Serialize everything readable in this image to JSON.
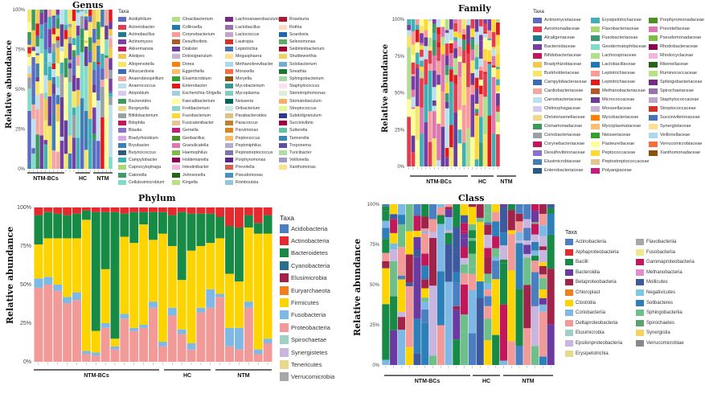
{
  "chart_data": [
    {
      "id": "genus",
      "type": "bar",
      "title": "Genus",
      "ylabel": "Relative abundance",
      "y_ticks": [
        "0%",
        "25%",
        "50%",
        "75%",
        "100%"
      ],
      "groups": [
        {
          "label": "NTM-BCs"
        },
        {
          "label": "HC"
        },
        {
          "label": "NTM"
        }
      ],
      "legend_title": "Taxa",
      "legend": [
        {
          "name": "Acidiphilium",
          "color": "#5b6cc4"
        },
        {
          "name": "Acinetobacter",
          "color": "#e43b4f"
        },
        {
          "name": "Actinobacillus",
          "color": "#1f7a8c"
        },
        {
          "name": "Actinomyces",
          "color": "#7a3fa6"
        },
        {
          "name": "Akkermansia",
          "color": "#c2185b"
        },
        {
          "name": "Alistipes",
          "color": "#f2c94c"
        },
        {
          "name": "Alloprevotella",
          "color": "#f5e663"
        },
        {
          "name": "Alloscardovia",
          "color": "#3d6bb3"
        },
        {
          "name": "Anaerobiospirillum",
          "color": "#f4a7a0"
        },
        {
          "name": "Anaerococcus",
          "color": "#bde0f0"
        },
        {
          "name": "Atopobium",
          "color": "#d8c9f2"
        },
        {
          "name": "Bacteroides",
          "color": "#3a9a5b"
        },
        {
          "name": "Bergeyella",
          "color": "#efd88a"
        },
        {
          "name": "Bifidobacterium",
          "color": "#9aa0a6"
        },
        {
          "name": "Bilophila",
          "color": "#c2185b"
        },
        {
          "name": "Blautia",
          "color": "#8a6fcf"
        },
        {
          "name": "Bradyrhizobium",
          "color": "#d9a6e8"
        },
        {
          "name": "Bryobacter",
          "color": "#3f7fb5"
        },
        {
          "name": "Butyricicoccus",
          "color": "#2e5a87"
        },
        {
          "name": "Campylobacter",
          "color": "#3fb0b5"
        },
        {
          "name": "Capnocytophaga",
          "color": "#a8d86e"
        },
        {
          "name": "Catonella",
          "color": "#3d9970"
        },
        {
          "name": "Cellulosimicrobium",
          "color": "#7fdbca"
        },
        {
          "name": "Cloacibacterium",
          "color": "#b2df8a"
        },
        {
          "name": "Collinsella",
          "color": "#1f78b4"
        },
        {
          "name": "Corynebacterium",
          "color": "#fb9a99"
        },
        {
          "name": "Desulfovibrio",
          "color": "#b15928"
        },
        {
          "name": "Dialister",
          "color": "#6a3d9a"
        },
        {
          "name": "Dolosigranulum",
          "color": "#cab2d6"
        },
        {
          "name": "Dorea",
          "color": "#ff7f00"
        },
        {
          "name": "Eggerthella",
          "color": "#fdbf6f"
        },
        {
          "name": "Elusimicrobium",
          "color": "#33a02c"
        },
        {
          "name": "Enterobacter",
          "color": "#e31a1c"
        },
        {
          "name": "Escherichia-Shigella",
          "color": "#a6cee3"
        },
        {
          "name": "Faecalibacterium",
          "color": "#ffff99"
        },
        {
          "name": "Fretibacterium",
          "color": "#8dd3c7"
        },
        {
          "name": "Fusobacterium",
          "color": "#ffd92f"
        },
        {
          "name": "Fusicatenibacter",
          "color": "#e5c494"
        },
        {
          "name": "Gemella",
          "color": "#c51b7d"
        },
        {
          "name": "Geobacillus",
          "color": "#4d9221"
        },
        {
          "name": "Granulicatella",
          "color": "#de77ae"
        },
        {
          "name": "Haemophilus",
          "color": "#7fbc41"
        },
        {
          "name": "Holdemanella",
          "color": "#8e0152"
        },
        {
          "name": "Intestinibacter",
          "color": "#f1b6da"
        },
        {
          "name": "Johnsonella",
          "color": "#276419"
        },
        {
          "name": "Kingella",
          "color": "#b8e186"
        },
        {
          "name": "Lachnoanaerobaculum",
          "color": "#762a83"
        },
        {
          "name": "Lactobacillus",
          "color": "#9970ab"
        },
        {
          "name": "Lactococcus",
          "color": "#c2a5cf"
        },
        {
          "name": "Lautropia",
          "color": "#d73027"
        },
        {
          "name": "Leptotrichia",
          "color": "#4575b4"
        },
        {
          "name": "Megasphaera",
          "color": "#fee090"
        },
        {
          "name": "Methanobrevibacter",
          "color": "#abd9e9"
        },
        {
          "name": "Moraxella",
          "color": "#f46d43"
        },
        {
          "name": "Moryella",
          "color": "#8c510a"
        },
        {
          "name": "Mycobacterium",
          "color": "#35978f"
        },
        {
          "name": "Mycoplasma",
          "color": "#80cdc1"
        },
        {
          "name": "Neisseria",
          "color": "#01665e"
        },
        {
          "name": "Oribacterium",
          "color": "#c7eae5"
        },
        {
          "name": "Parabacteroides",
          "color": "#dfc27d"
        },
        {
          "name": "Paracoccus",
          "color": "#bf812d"
        },
        {
          "name": "Parvimonas",
          "color": "#e08214"
        },
        {
          "name": "Peptococcus",
          "color": "#fdb863"
        },
        {
          "name": "Peptoniphilus",
          "color": "#b2abd2"
        },
        {
          "name": "Peptostreptococcus",
          "color": "#8073ac"
        },
        {
          "name": "Porphyromonas",
          "color": "#542788"
        },
        {
          "name": "Prevotella",
          "color": "#d6604d"
        },
        {
          "name": "Pseudomonas",
          "color": "#4393c3"
        },
        {
          "name": "Romboutsia",
          "color": "#92c5de"
        },
        {
          "name": "Roseburia",
          "color": "#b2182b"
        },
        {
          "name": "Rothia",
          "color": "#fddbc7"
        },
        {
          "name": "Scardovia",
          "color": "#2166ac"
        },
        {
          "name": "Selenomonas",
          "color": "#5aae61"
        },
        {
          "name": "Sediminibacterium",
          "color": "#a50026"
        },
        {
          "name": "Shuttleworthia",
          "color": "#f9d057"
        },
        {
          "name": "Solobacterium",
          "color": "#74add1"
        },
        {
          "name": "Sneathia",
          "color": "#1b7837"
        },
        {
          "name": "Sphingobacterium",
          "color": "#a6dba0"
        },
        {
          "name": "Staphylococcus",
          "color": "#fde0ef"
        },
        {
          "name": "Stenotrophomonas",
          "color": "#d9f0d3"
        },
        {
          "name": "Stomatobaculum",
          "color": "#fdae61"
        },
        {
          "name": "Streptococcus",
          "color": "#e6f598"
        },
        {
          "name": "Subdoligranulum",
          "color": "#313695"
        },
        {
          "name": "Succinivibrio",
          "color": "#9e0142"
        },
        {
          "name": "Sutterella",
          "color": "#66c2a5"
        },
        {
          "name": "Tannerella",
          "color": "#3288bd"
        },
        {
          "name": "Treponema",
          "color": "#5e4fa2"
        },
        {
          "name": "Turicibacter",
          "color": "#abdda4"
        },
        {
          "name": "Veillonella",
          "color": "#9e9ac8"
        },
        {
          "name": "Xanthomonas",
          "color": "#fee08b"
        }
      ]
    },
    {
      "id": "family",
      "type": "bar",
      "title": "Family",
      "ylabel": "Relative abundance",
      "y_ticks": [
        "0%",
        "25%",
        "50%",
        "75%",
        "100%"
      ],
      "groups": [
        {
          "label": "NTM-BCs"
        },
        {
          "label": "HC"
        },
        {
          "label": "NTM"
        }
      ],
      "legend_title": "Taxa",
      "legend": [
        {
          "name": "Actinomycetaceae",
          "color": "#5b6cc4"
        },
        {
          "name": "Aeromonadaceae",
          "color": "#e43b4f"
        },
        {
          "name": "Alcaligenaceae",
          "color": "#1f7a8c"
        },
        {
          "name": "Bacteroidaceae",
          "color": "#7a3fa6"
        },
        {
          "name": "Bifidobacteriaceae",
          "color": "#c2185b"
        },
        {
          "name": "Bradyrhizobiaceae",
          "color": "#f2c94c"
        },
        {
          "name": "Burkholderiaceae",
          "color": "#f5e663"
        },
        {
          "name": "Campylobacteraceae",
          "color": "#3d6bb3"
        },
        {
          "name": "Cardiobacteriaceae",
          "color": "#f4a7a0"
        },
        {
          "name": "Carnobacteriaceae",
          "color": "#bde0f0"
        },
        {
          "name": "Chitinophagaceae",
          "color": "#d8c9f2"
        },
        {
          "name": "Christensenellaceae",
          "color": "#efd88a"
        },
        {
          "name": "Comamonadaceae",
          "color": "#3a9a5b"
        },
        {
          "name": "Coriobacteriaceae",
          "color": "#9aa0a6"
        },
        {
          "name": "Corynebacteriaceae",
          "color": "#c2185b"
        },
        {
          "name": "Desulfovibrionaceae",
          "color": "#8a6fcf"
        },
        {
          "name": "Elusimicrobiaceae",
          "color": "#3f7fb5"
        },
        {
          "name": "Enterobacteriaceae",
          "color": "#2e5a87"
        },
        {
          "name": "Erysipelotrichaceae",
          "color": "#3fb0b5"
        },
        {
          "name": "Flavobacteriaceae",
          "color": "#a8d86e"
        },
        {
          "name": "Fusobacteriaceae",
          "color": "#3d9970"
        },
        {
          "name": "Geodermatophilaceae",
          "color": "#7fdbca"
        },
        {
          "name": "Lachnospiraceae",
          "color": "#b2df8a"
        },
        {
          "name": "Lactobacillaceae",
          "color": "#1f78b4"
        },
        {
          "name": "Leptotrichiaceae",
          "color": "#fb9a99"
        },
        {
          "name": "Leptotrichiaceae",
          "color": "#e31a1c"
        },
        {
          "name": "Methanobacteriaceae",
          "color": "#b15928"
        },
        {
          "name": "Micrococcaceae",
          "color": "#6a3d9a"
        },
        {
          "name": "Moraxellaceae",
          "color": "#cab2d6"
        },
        {
          "name": "Mycobacteriaceae",
          "color": "#ff7f00"
        },
        {
          "name": "Mycoplasmataceae",
          "color": "#fdbf6f"
        },
        {
          "name": "Neisseriaceae",
          "color": "#33a02c"
        },
        {
          "name": "Pasteurellaceae",
          "color": "#ffff99"
        },
        {
          "name": "Peptococcaceae",
          "color": "#ffd92f"
        },
        {
          "name": "Peptostreptococcaceae",
          "color": "#e5c494"
        },
        {
          "name": "Polyangiaceae",
          "color": "#c51b7d"
        },
        {
          "name": "Porphyromonadaceae",
          "color": "#4d9221"
        },
        {
          "name": "Prevotellaceae",
          "color": "#de77ae"
        },
        {
          "name": "Pseudomonadaceae",
          "color": "#7fbc41"
        },
        {
          "name": "Rhodobacteraceae",
          "color": "#8e0152"
        },
        {
          "name": "Rhodocyclaceae",
          "color": "#f1b6da"
        },
        {
          "name": "Rikenellaceae",
          "color": "#276419"
        },
        {
          "name": "Ruminococcaceae",
          "color": "#b8e186"
        },
        {
          "name": "Sphingobacteriaceae",
          "color": "#762a83"
        },
        {
          "name": "Spirochaetaceae",
          "color": "#9970ab"
        },
        {
          "name": "Staphylococcaceae",
          "color": "#c2a5cf"
        },
        {
          "name": "Streptococcaceae",
          "color": "#d73027"
        },
        {
          "name": "Succinivibrionaceae",
          "color": "#4575b4"
        },
        {
          "name": "Synergistaceae",
          "color": "#fee090"
        },
        {
          "name": "Veillonellaceae",
          "color": "#abd9e9"
        },
        {
          "name": "Verrucomicrobiaceae",
          "color": "#f46d43"
        },
        {
          "name": "Xanthomonadaceae",
          "color": "#8c510a"
        }
      ]
    },
    {
      "id": "phylum",
      "type": "bar",
      "title": "Phylum",
      "ylabel": "Relative abundance",
      "y_ticks": [
        "0%",
        "25%",
        "50%",
        "75%",
        "100%"
      ],
      "groups": [
        {
          "label": "NTM-BCs"
        },
        {
          "label": "HC"
        },
        {
          "label": "NTM"
        }
      ],
      "legend_title": "Taxa",
      "legend": [
        {
          "name": "Acidobacteria",
          "color": "#4a7fc1"
        },
        {
          "name": "Actinobacteria",
          "color": "#e42a2f"
        },
        {
          "name": "Bacteroidetes",
          "color": "#178a45"
        },
        {
          "name": "Cyanobacteria",
          "color": "#2a6e8e"
        },
        {
          "name": "Elusimicrobia",
          "color": "#a0244a"
        },
        {
          "name": "Euryarchaeota",
          "color": "#f07f1e"
        },
        {
          "name": "Firmicutes",
          "color": "#fdd400"
        },
        {
          "name": "Fusobacteria",
          "color": "#7db9e4"
        },
        {
          "name": "Proteobacteria",
          "color": "#f29a98"
        },
        {
          "name": "Spirochaetae",
          "color": "#9ed0c4"
        },
        {
          "name": "Synergistetes",
          "color": "#c8b6e0"
        },
        {
          "name": "Tenericutes",
          "color": "#e6d98c"
        },
        {
          "name": "Verrucomicrobia",
          "color": "#a8a8a8"
        }
      ],
      "series_order": [
        "Proteobacteria",
        "Fusobacteria",
        "Firmicutes",
        "Bacteroidetes",
        "Actinobacteria"
      ],
      "series_colors": [
        "#f29a98",
        "#7db9e4",
        "#fdd400",
        "#178a45",
        "#e42a2f"
      ],
      "samples": [
        [
          48,
          6,
          22,
          19,
          5
        ],
        [
          50,
          5,
          25,
          17,
          3
        ],
        [
          46,
          4,
          30,
          16,
          4
        ],
        [
          38,
          4,
          38,
          15,
          5
        ],
        [
          40,
          5,
          35,
          16,
          4
        ],
        [
          5,
          2,
          85,
          6,
          2
        ],
        [
          4,
          2,
          14,
          77,
          3
        ],
        [
          22,
          3,
          35,
          37,
          3
        ],
        [
          8,
          2,
          5,
          82,
          3
        ],
        [
          28,
          3,
          50,
          15,
          4
        ],
        [
          20,
          2,
          55,
          20,
          3
        ],
        [
          22,
          2,
          65,
          8,
          3
        ],
        [
          35,
          4,
          40,
          18,
          3
        ],
        [
          10,
          3,
          70,
          14,
          3
        ],
        [
          30,
          5,
          40,
          20,
          5
        ],
        [
          18,
          3,
          32,
          44,
          3
        ],
        [
          8,
          4,
          60,
          24,
          4
        ],
        [
          32,
          3,
          40,
          21,
          4
        ],
        [
          35,
          12,
          30,
          19,
          4
        ],
        [
          42,
          2,
          36,
          14,
          6
        ],
        [
          10,
          12,
          35,
          31,
          12
        ],
        [
          8,
          14,
          30,
          35,
          13
        ],
        [
          35,
          4,
          48,
          8,
          5
        ],
        [
          5,
          3,
          75,
          7,
          10
        ],
        [
          12,
          3,
          68,
          12,
          5
        ]
      ]
    },
    {
      "id": "class",
      "type": "bar",
      "title": "Class",
      "ylabel": "Relative abundance",
      "y_ticks": [
        "0%",
        "25%",
        "50%",
        "75%",
        "100%"
      ],
      "groups": [
        {
          "label": "NTM-BCs"
        },
        {
          "label": "HC"
        },
        {
          "label": "NTM"
        }
      ],
      "legend_title": "Taxa",
      "legend": [
        {
          "name": "Actinobacteria",
          "color": "#4a7fc1"
        },
        {
          "name": "Alphaproteobacteria",
          "color": "#e42a2f"
        },
        {
          "name": "Bacilli",
          "color": "#178a45"
        },
        {
          "name": "Bacteroidia",
          "color": "#6b3aa0"
        },
        {
          "name": "Betaproteobacteria",
          "color": "#a0244a"
        },
        {
          "name": "Chloroplast",
          "color": "#f07f1e"
        },
        {
          "name": "Clostridia",
          "color": "#fdd400"
        },
        {
          "name": "Coriobacteriia",
          "color": "#7db9e4"
        },
        {
          "name": "Deltaproteobacteria",
          "color": "#f29a98"
        },
        {
          "name": "Elusimicrobia",
          "color": "#9ed0c4"
        },
        {
          "name": "Epsilonproteobacteria",
          "color": "#c8b6e0"
        },
        {
          "name": "Erysipelotrichia",
          "color": "#e6d98c"
        },
        {
          "name": "Flavobacteriia",
          "color": "#a8a8a8"
        },
        {
          "name": "Fusobacteriia",
          "color": "#f0e68c"
        },
        {
          "name": "Gammaproteobacteria",
          "color": "#c2185b"
        },
        {
          "name": "Methanobacteria",
          "color": "#e58bd0"
        },
        {
          "name": "Mollicutes",
          "color": "#3d5a9e"
        },
        {
          "name": "Negativicutes",
          "color": "#7ec8e3"
        },
        {
          "name": "Solibacteres",
          "color": "#2c7fb8"
        },
        {
          "name": "Sphingobacteriia",
          "color": "#6fbf8b"
        },
        {
          "name": "Spirochaetes",
          "color": "#5aa36e"
        },
        {
          "name": "Synergistia",
          "color": "#f4d35e"
        },
        {
          "name": "Verrucomicrobiae",
          "color": "#888888"
        }
      ]
    }
  ]
}
